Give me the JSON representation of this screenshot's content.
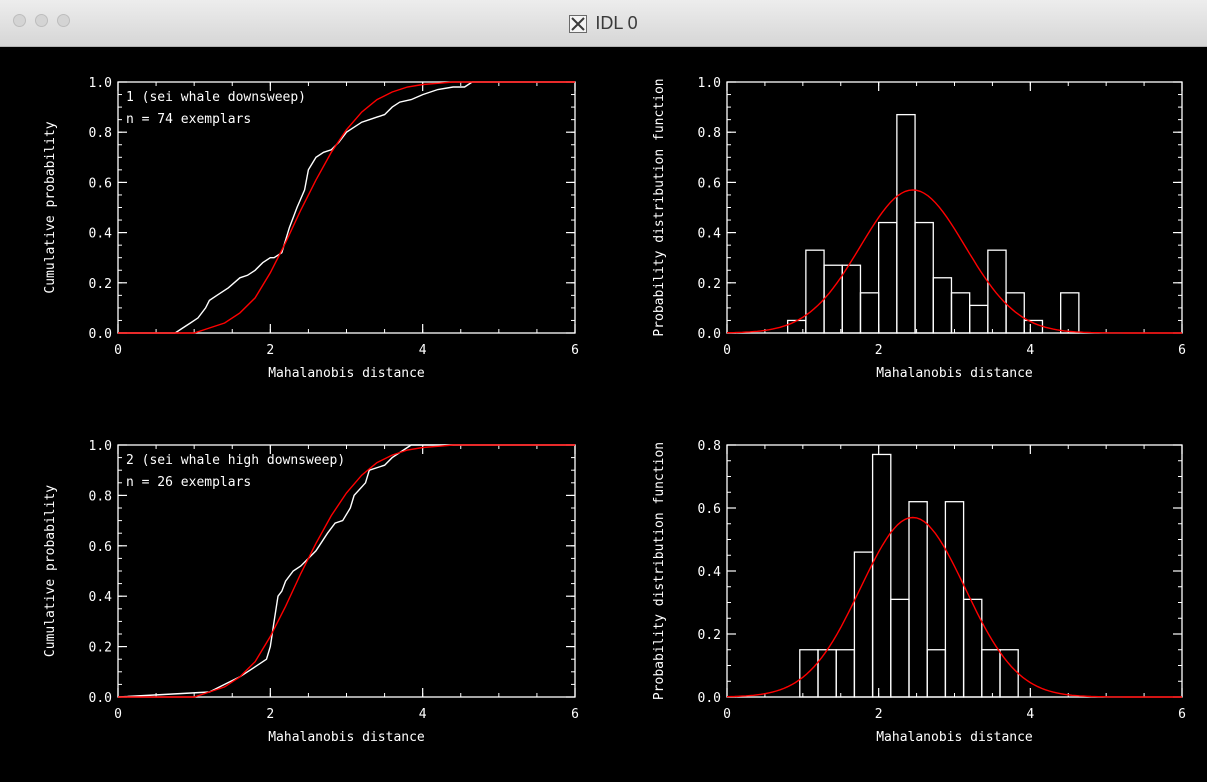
{
  "window": {
    "title": "IDL 0",
    "title_icon": "x11-icon"
  },
  "colors": {
    "background": "#000000",
    "axes": "#ffffff",
    "empirical": "#ffffff",
    "model": "#ff0000"
  },
  "chart_data": [
    {
      "type": "line",
      "position": "top-left",
      "xlabel": "Mahalanobis distance",
      "ylabel": "Cumulative probability",
      "xlim": [
        0,
        6
      ],
      "ylim": [
        0,
        1.0
      ],
      "xticks": [
        "0",
        "2",
        "4",
        "6"
      ],
      "yticks": [
        "0.0",
        "0.2",
        "0.4",
        "0.6",
        "0.8",
        "1.0"
      ],
      "annotations": [
        "1 (sei whale downsweep)",
        "n = 74 exemplars"
      ],
      "series": [
        {
          "role": "empirical-cdf",
          "color": "#ffffff",
          "x": [
            0,
            0.75,
            0.85,
            0.95,
            1.05,
            1.15,
            1.2,
            1.3,
            1.45,
            1.6,
            1.7,
            1.8,
            1.9,
            2.0,
            2.05,
            2.15,
            2.2,
            2.25,
            2.35,
            2.45,
            2.5,
            2.6,
            2.7,
            2.8,
            2.9,
            3.0,
            3.1,
            3.2,
            3.3,
            3.4,
            3.5,
            3.6,
            3.7,
            3.85,
            4.0,
            4.2,
            4.4,
            4.55,
            4.6,
            4.65,
            6.0
          ],
          "y": [
            0,
            0,
            0.02,
            0.04,
            0.06,
            0.1,
            0.13,
            0.15,
            0.18,
            0.22,
            0.23,
            0.25,
            0.28,
            0.3,
            0.3,
            0.32,
            0.37,
            0.42,
            0.5,
            0.57,
            0.65,
            0.7,
            0.72,
            0.73,
            0.76,
            0.8,
            0.82,
            0.84,
            0.85,
            0.86,
            0.87,
            0.9,
            0.92,
            0.93,
            0.95,
            0.97,
            0.98,
            0.98,
            0.99,
            1.0,
            1.0
          ]
        },
        {
          "role": "model-cdf",
          "color": "#ff0000",
          "x": [
            0,
            0.8,
            1.0,
            1.2,
            1.4,
            1.6,
            1.8,
            2.0,
            2.2,
            2.4,
            2.6,
            2.8,
            3.0,
            3.2,
            3.4,
            3.6,
            3.8,
            4.0,
            4.2,
            4.4,
            4.6,
            4.8,
            5.0,
            6.0
          ],
          "y": [
            0,
            0.0,
            0.0,
            0.02,
            0.04,
            0.08,
            0.14,
            0.24,
            0.36,
            0.49,
            0.61,
            0.72,
            0.81,
            0.88,
            0.93,
            0.96,
            0.98,
            0.99,
            0.995,
            1.0,
            1.0,
            1.0,
            1.0,
            1.0
          ]
        }
      ]
    },
    {
      "type": "bar",
      "position": "top-right",
      "xlabel": "Mahalanobis distance",
      "ylabel": "Probability distribution function",
      "xlim": [
        0,
        6
      ],
      "ylim": [
        0,
        1.0
      ],
      "xticks": [
        "0",
        "2",
        "4",
        "6"
      ],
      "yticks": [
        "0.0",
        "0.2",
        "0.4",
        "0.6",
        "0.8",
        "1.0"
      ],
      "bin_width": 0.24,
      "bin_starts": [
        0.8,
        1.04,
        1.28,
        1.52,
        1.76,
        2.0,
        2.24,
        2.48,
        2.72,
        2.96,
        3.2,
        3.44,
        3.68,
        3.92,
        4.16,
        4.4,
        4.64
      ],
      "values": [
        0.05,
        0.33,
        0.27,
        0.27,
        0.16,
        0.44,
        0.87,
        0.44,
        0.22,
        0.16,
        0.11,
        0.33,
        0.16,
        0.05,
        0.0,
        0.16,
        0.0
      ],
      "series": [
        {
          "role": "model-pdf",
          "color": "#ff0000",
          "mean": 2.45,
          "sd": 0.69
        }
      ]
    },
    {
      "type": "line",
      "position": "bottom-left",
      "xlabel": "Mahalanobis distance",
      "ylabel": "Cumulative probability",
      "xlim": [
        0,
        6
      ],
      "ylim": [
        0,
        1.0
      ],
      "xticks": [
        "0",
        "2",
        "4",
        "6"
      ],
      "yticks": [
        "0.0",
        "0.2",
        "0.4",
        "0.6",
        "0.8",
        "1.0"
      ],
      "annotations": [
        "2 (sei whale high downsweep)",
        "n = 26 exemplars"
      ],
      "series": [
        {
          "role": "empirical-cdf",
          "color": "#ffffff",
          "x": [
            0,
            1.2,
            1.4,
            1.6,
            1.8,
            1.95,
            2.0,
            2.05,
            2.1,
            2.15,
            2.2,
            2.3,
            2.4,
            2.5,
            2.6,
            2.75,
            2.85,
            2.95,
            3.05,
            3.1,
            3.25,
            3.3,
            3.5,
            3.6,
            3.75,
            3.85,
            6.0
          ],
          "y": [
            0,
            0.02,
            0.05,
            0.08,
            0.12,
            0.15,
            0.2,
            0.3,
            0.4,
            0.42,
            0.46,
            0.5,
            0.52,
            0.55,
            0.58,
            0.65,
            0.69,
            0.7,
            0.75,
            0.8,
            0.85,
            0.9,
            0.92,
            0.95,
            0.98,
            1.0,
            1.0
          ]
        },
        {
          "role": "model-cdf",
          "color": "#ff0000",
          "x": [
            0,
            0.8,
            1.0,
            1.2,
            1.4,
            1.6,
            1.8,
            2.0,
            2.2,
            2.4,
            2.6,
            2.8,
            3.0,
            3.2,
            3.4,
            3.6,
            3.8,
            4.0,
            4.2,
            4.4,
            4.6,
            4.8,
            5.0,
            6.0
          ],
          "y": [
            0,
            0.0,
            0.0,
            0.02,
            0.04,
            0.08,
            0.14,
            0.24,
            0.36,
            0.49,
            0.61,
            0.72,
            0.81,
            0.88,
            0.93,
            0.96,
            0.98,
            0.99,
            0.995,
            1.0,
            1.0,
            1.0,
            1.0,
            1.0
          ]
        }
      ]
    },
    {
      "type": "bar",
      "position": "bottom-right",
      "xlabel": "Mahalanobis distance",
      "ylabel": "Probability distribution function",
      "xlim": [
        0,
        6
      ],
      "ylim": [
        0,
        0.8
      ],
      "xticks": [
        "0",
        "2",
        "4",
        "6"
      ],
      "yticks": [
        "0.0",
        "0.2",
        "0.4",
        "0.6",
        "0.8"
      ],
      "bin_width": 0.24,
      "bin_starts": [
        0.96,
        1.2,
        1.44,
        1.68,
        1.92,
        2.16,
        2.4,
        2.64,
        2.88,
        3.12,
        3.36,
        3.6
      ],
      "values": [
        0.15,
        0.15,
        0.15,
        0.46,
        0.77,
        0.31,
        0.62,
        0.15,
        0.62,
        0.31,
        0.15,
        0.15
      ],
      "series": [
        {
          "role": "model-pdf",
          "color": "#ff0000",
          "mean": 2.45,
          "sd": 0.69
        }
      ]
    }
  ]
}
